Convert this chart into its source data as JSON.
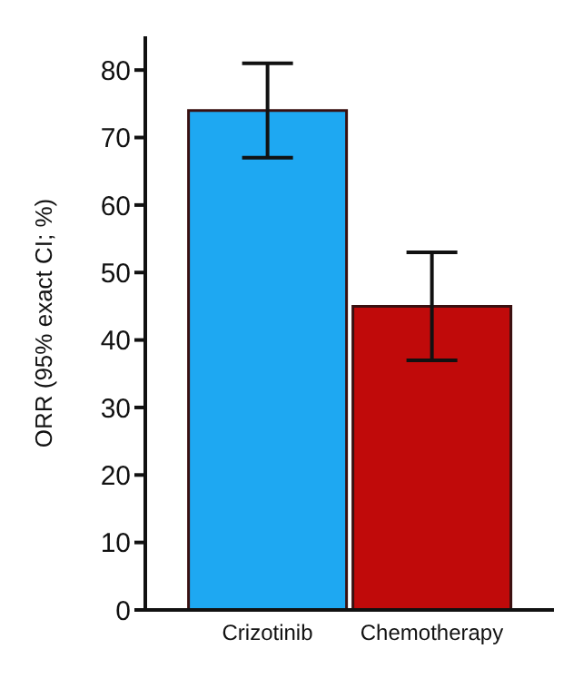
{
  "chart_data": {
    "type": "bar",
    "ylabel": "ORR (95% exact CI; %)",
    "categories": [
      "Crizotinib",
      "Chemotherapy"
    ],
    "values": [
      74,
      45
    ],
    "colors": [
      "#1ea8f2",
      "#c00a0a"
    ],
    "errors": [
      [
        67,
        81
      ],
      [
        37,
        53
      ]
    ],
    "ylim": [
      0,
      85
    ],
    "yticks": [
      0,
      10,
      20,
      30,
      40,
      50,
      60,
      70,
      80
    ],
    "grid": false
  }
}
